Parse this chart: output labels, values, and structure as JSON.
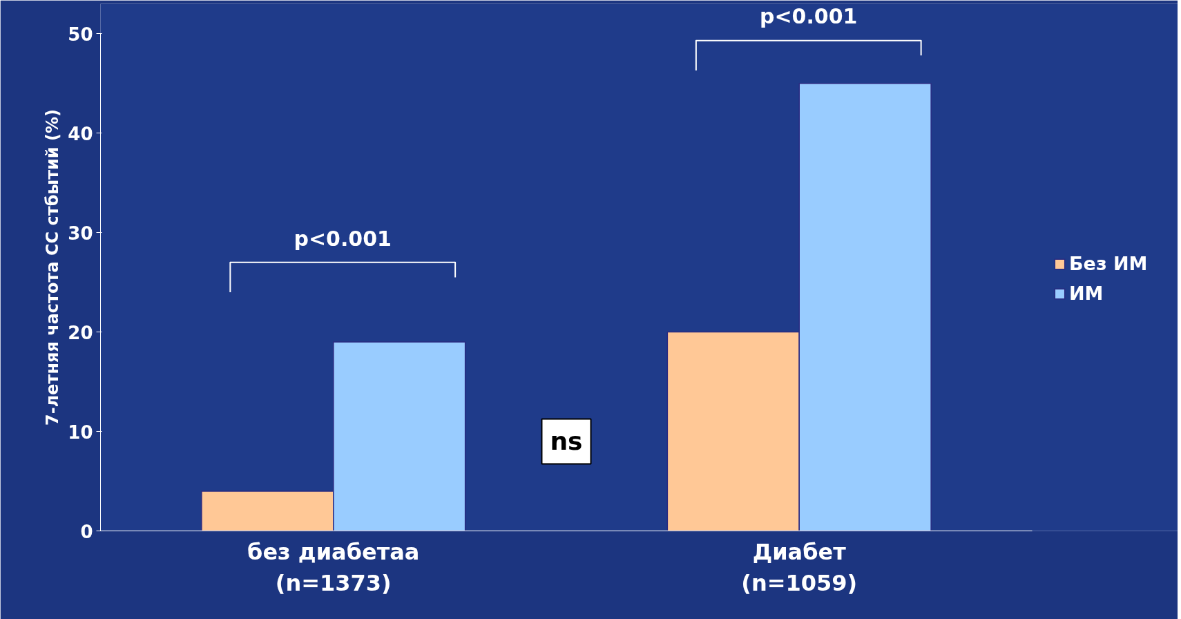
{
  "chart_data": {
    "type": "bar",
    "ylabel": "7-летняя частота СС стбытий (%)",
    "categories": [
      "без диабетаа\n(n=1373)",
      "Диабет\n(n=1059)"
    ],
    "series": [
      {
        "name": "Без ИМ",
        "color": "#ffc896",
        "values": [
          4,
          20
        ]
      },
      {
        "name": "ИМ",
        "color": "#99ccff",
        "values": [
          19,
          45
        ]
      }
    ],
    "ylim": [
      0,
      50
    ],
    "yticks": [
      0,
      10,
      20,
      30,
      40,
      50
    ],
    "grid": false,
    "legend": "right",
    "annotations": [
      "p<0.001",
      "p<0.001",
      "ns"
    ]
  }
}
